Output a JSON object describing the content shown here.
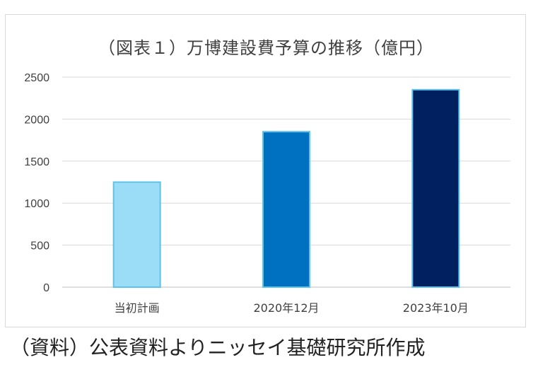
{
  "chart_data": {
    "type": "bar",
    "title": "（図表１）万博建設費予算の推移（億円）",
    "categories": [
      "当初計画",
      "2020年12月",
      "2023年10月"
    ],
    "values": [
      1250,
      1850,
      2350
    ],
    "colors": [
      "#9bdcf7",
      "#0070c0",
      "#002060"
    ],
    "bar_stroke": "#5fc2e8",
    "ylim": [
      0,
      2500
    ],
    "yticks": [
      0,
      500,
      1000,
      1500,
      2000,
      2500
    ],
    "grid": true,
    "legend": "none",
    "xlabel": "",
    "ylabel": ""
  },
  "source_note": "（資料）公表資料よりニッセイ基礎研究所作成"
}
